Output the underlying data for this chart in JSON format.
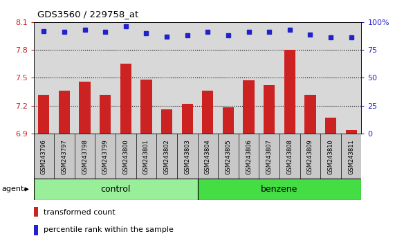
{
  "title": "GDS3560 / 229758_at",
  "categories": [
    "GSM243796",
    "GSM243797",
    "GSM243798",
    "GSM243799",
    "GSM243800",
    "GSM243801",
    "GSM243802",
    "GSM243803",
    "GSM243804",
    "GSM243805",
    "GSM243806",
    "GSM243807",
    "GSM243808",
    "GSM243809",
    "GSM243810",
    "GSM243811"
  ],
  "bar_values": [
    7.32,
    7.36,
    7.46,
    7.32,
    7.65,
    7.48,
    7.16,
    7.22,
    7.36,
    7.18,
    7.47,
    7.42,
    7.8,
    7.32,
    7.07,
    6.94
  ],
  "percentile_values": [
    92,
    91,
    93,
    91,
    96,
    90,
    87,
    88,
    91,
    88,
    91,
    91,
    93,
    89,
    86,
    86
  ],
  "bar_color": "#cc2222",
  "dot_color": "#2222cc",
  "ylim_left": [
    6.9,
    8.1
  ],
  "ylim_right": [
    0,
    100
  ],
  "yticks_left": [
    6.9,
    7.2,
    7.5,
    7.8,
    8.1
  ],
  "yticks_right": [
    0,
    25,
    50,
    75,
    100
  ],
  "ytick_labels_right": [
    "0",
    "25",
    "50",
    "75",
    "100%"
  ],
  "hlines": [
    7.2,
    7.5,
    7.8
  ],
  "n_control": 8,
  "control_label": "control",
  "benzene_label": "benzene",
  "agent_label": "agent",
  "legend_bar_label": "transformed count",
  "legend_dot_label": "percentile rank within the sample",
  "plot_bg": "#d8d8d8",
  "label_bg": "#c8c8c8",
  "control_color": "#99ee99",
  "benzene_color": "#44dd44",
  "fig_bg": "#ffffff",
  "bar_baseline": 6.9
}
